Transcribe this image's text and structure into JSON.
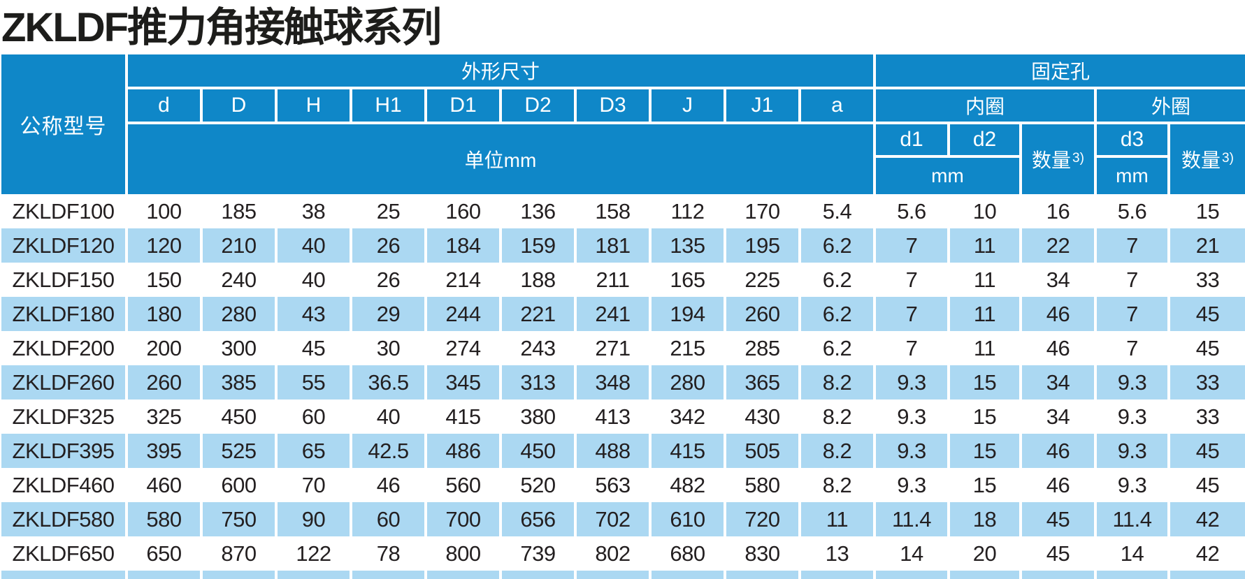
{
  "page": {
    "title": "ZKLDF推力角接触球系列"
  },
  "colors": {
    "header_blue": "#0f87c8",
    "row_stripe_blue": "#abd8f2",
    "separator_white": "#ffffff",
    "header_text": "#ffffff",
    "body_text": "#231f20"
  },
  "table": {
    "header": {
      "model_col": "公称型号",
      "dims_group": "外形尺寸",
      "holes_group": "固定孔",
      "dim_cols": [
        "d",
        "D",
        "H",
        "H1",
        "D1",
        "D2",
        "D3",
        "J",
        "J1",
        "a"
      ],
      "unit_row": "单位mm",
      "inner_ring": "内圈",
      "outer_ring": "外圈",
      "inner_col_d1": "d1",
      "inner_col_d2": "d2",
      "outer_col_d3": "d3",
      "qty_label": "数量",
      "qty_sup": "3)",
      "mm_inner": "mm",
      "mm_outer": "mm"
    },
    "rows": [
      {
        "model": "ZKLDF100",
        "values": [
          "100",
          "185",
          "38",
          "25",
          "160",
          "136",
          "158",
          "112",
          "170",
          "5.4",
          "5.6",
          "10",
          "16",
          "5.6",
          "15"
        ]
      },
      {
        "model": "ZKLDF120",
        "values": [
          "120",
          "210",
          "40",
          "26",
          "184",
          "159",
          "181",
          "135",
          "195",
          "6.2",
          "7",
          "11",
          "22",
          "7",
          "21"
        ]
      },
      {
        "model": "ZKLDF150",
        "values": [
          "150",
          "240",
          "40",
          "26",
          "214",
          "188",
          "211",
          "165",
          "225",
          "6.2",
          "7",
          "11",
          "34",
          "7",
          "33"
        ]
      },
      {
        "model": "ZKLDF180",
        "values": [
          "180",
          "280",
          "43",
          "29",
          "244",
          "221",
          "241",
          "194",
          "260",
          "6.2",
          "7",
          "11",
          "46",
          "7",
          "45"
        ]
      },
      {
        "model": "ZKLDF200",
        "values": [
          "200",
          "300",
          "45",
          "30",
          "274",
          "243",
          "271",
          "215",
          "285",
          "6.2",
          "7",
          "11",
          "46",
          "7",
          "45"
        ]
      },
      {
        "model": "ZKLDF260",
        "values": [
          "260",
          "385",
          "55",
          "36.5",
          "345",
          "313",
          "348",
          "280",
          "365",
          "8.2",
          "9.3",
          "15",
          "34",
          "9.3",
          "33"
        ]
      },
      {
        "model": "ZKLDF325",
        "values": [
          "325",
          "450",
          "60",
          "40",
          "415",
          "380",
          "413",
          "342",
          "430",
          "8.2",
          "9.3",
          "15",
          "34",
          "9.3",
          "33"
        ]
      },
      {
        "model": "ZKLDF395",
        "values": [
          "395",
          "525",
          "65",
          "42.5",
          "486",
          "450",
          "488",
          "415",
          "505",
          "8.2",
          "9.3",
          "15",
          "46",
          "9.3",
          "45"
        ]
      },
      {
        "model": "ZKLDF460",
        "values": [
          "460",
          "600",
          "70",
          "46",
          "560",
          "520",
          "563",
          "482",
          "580",
          "8.2",
          "9.3",
          "15",
          "46",
          "9.3",
          "45"
        ]
      },
      {
        "model": "ZKLDF580",
        "values": [
          "580",
          "750",
          "90",
          "60",
          "700",
          "656",
          "702",
          "610",
          "720",
          "11",
          "11.4",
          "18",
          "45",
          "11.4",
          "42"
        ]
      },
      {
        "model": "ZKLDF650",
        "values": [
          "650",
          "870",
          "122",
          "78",
          "800",
          "739",
          "802",
          "680",
          "830",
          "13",
          "14",
          "20",
          "45",
          "14",
          "42"
        ]
      }
    ]
  }
}
